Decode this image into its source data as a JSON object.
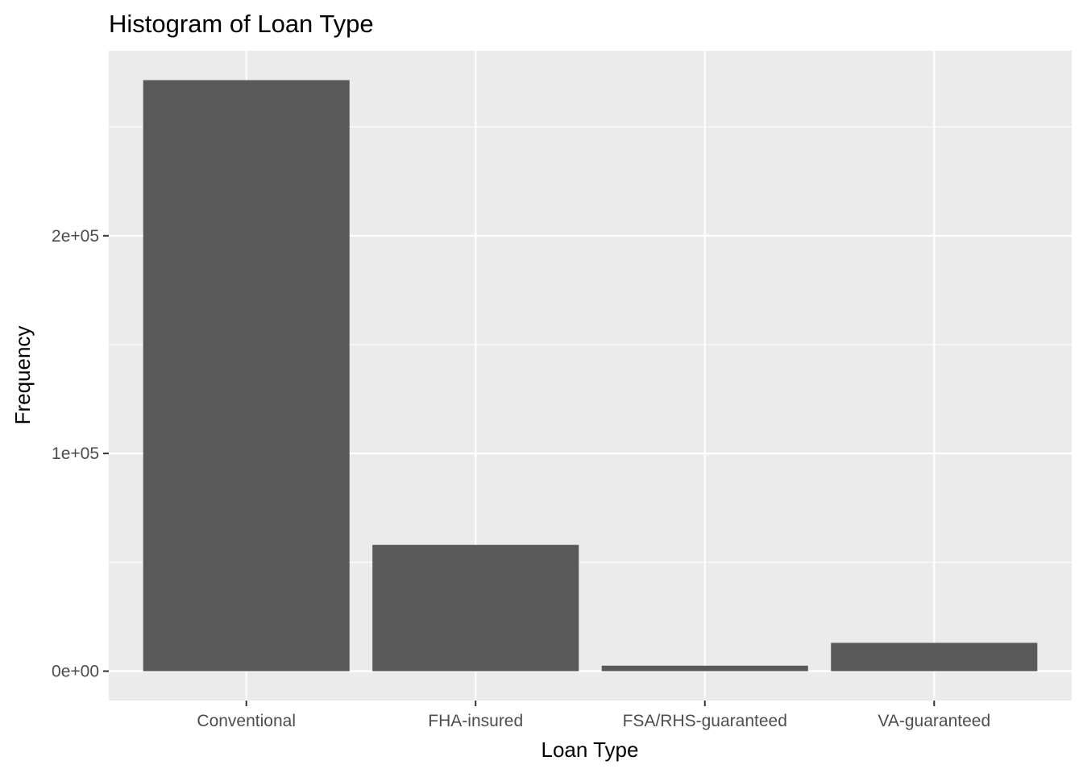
{
  "chart_data": {
    "type": "bar",
    "title": "Histogram of Loan Type",
    "xlabel": "Loan Type",
    "ylabel": "Frequency",
    "categories": [
      "Conventional",
      "FHA-insured",
      "FSA/RHS-guaranteed",
      "VA-guaranteed"
    ],
    "values": [
      271500,
      58000,
      2500,
      13000
    ],
    "ylim": [
      -13500,
      285000
    ],
    "y_ticks": [
      0,
      100000,
      200000
    ],
    "y_tick_labels": [
      "0e+00",
      "1e+05",
      "2e+05"
    ],
    "y_minor_ticks": [
      50000,
      150000,
      250000
    ],
    "grid": true,
    "legend": "none",
    "colors": {
      "bar": "#595959",
      "panel_background": "#ebebeb",
      "grid": "#ffffff",
      "tick_label": "#4d4d4d",
      "tick_mark": "#333333"
    }
  }
}
